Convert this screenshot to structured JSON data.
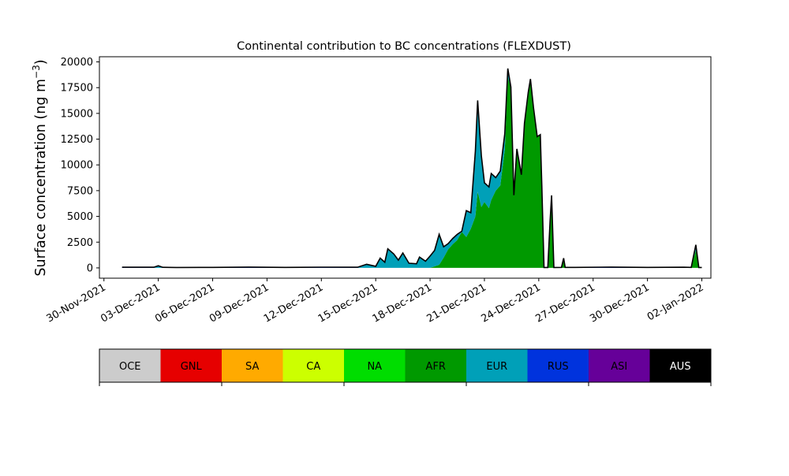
{
  "chart_data": {
    "type": "area",
    "title": "Continental contribution to BC concentrations (FLEXDUST)",
    "ylabel": "Surface concentration (ng m$^{-3}$)",
    "ylabel_parts": {
      "main": "Surface concentration (ng m",
      "sup": "−3",
      "close": ")"
    },
    "xlabel": "",
    "xlim": [
      "2021-11-29T18:00",
      "2022-01-02T12:00"
    ],
    "ylim": [
      -1000,
      20500
    ],
    "xticks": [
      {
        "value": "2021-11-30",
        "label": "30-Nov-2021"
      },
      {
        "value": "2021-12-03",
        "label": "03-Dec-2021"
      },
      {
        "value": "2021-12-06",
        "label": "06-Dec-2021"
      },
      {
        "value": "2021-12-09",
        "label": "09-Dec-2021"
      },
      {
        "value": "2021-12-12",
        "label": "12-Dec-2021"
      },
      {
        "value": "2021-12-15",
        "label": "15-Dec-2021"
      },
      {
        "value": "2021-12-18",
        "label": "18-Dec-2021"
      },
      {
        "value": "2021-12-21",
        "label": "21-Dec-2021"
      },
      {
        "value": "2021-12-24",
        "label": "24-Dec-2021"
      },
      {
        "value": "2021-12-27",
        "label": "27-Dec-2021"
      },
      {
        "value": "2021-12-30",
        "label": "30-Dec-2021"
      },
      {
        "value": "2022-01-02",
        "label": "02-Jan-2022"
      }
    ],
    "yticks": [
      {
        "value": 0,
        "label": "0"
      },
      {
        "value": 2500,
        "label": "2500"
      },
      {
        "value": 5000,
        "label": "5000"
      },
      {
        "value": 7500,
        "label": "7500"
      },
      {
        "value": 10000,
        "label": "10000"
      },
      {
        "value": 12500,
        "label": "12500"
      },
      {
        "value": 15000,
        "label": "15000"
      },
      {
        "value": 17500,
        "label": "17500"
      },
      {
        "value": 20000,
        "label": "20000"
      }
    ],
    "stacked": true,
    "total_line_color": "#000000",
    "series": [
      {
        "name": "AFR",
        "color": "#009900",
        "points": [
          [
            "2021-12-01",
            0
          ],
          [
            "2021-12-18",
            0
          ],
          [
            "2021-12-18T12:00",
            300
          ],
          [
            "2021-12-18T18:00",
            1000
          ],
          [
            "2021-12-19T00:00",
            1800
          ],
          [
            "2021-12-19T06:00",
            2300
          ],
          [
            "2021-12-19T12:00",
            2700
          ],
          [
            "2021-12-19T18:00",
            3500
          ],
          [
            "2021-12-20T00:00",
            3000
          ],
          [
            "2021-12-20T06:00",
            3800
          ],
          [
            "2021-12-20T12:00",
            5000
          ],
          [
            "2021-12-20T15:00",
            7400
          ],
          [
            "2021-12-20T20:00",
            5900
          ],
          [
            "2021-12-21T00:00",
            6400
          ],
          [
            "2021-12-21T06:00",
            5800
          ],
          [
            "2021-12-21T09:00",
            6600
          ],
          [
            "2021-12-21T15:00",
            7500
          ],
          [
            "2021-12-21T21:00",
            8000
          ],
          [
            "2021-12-22T03:00",
            11500
          ],
          [
            "2021-12-22T07:00",
            18500
          ],
          [
            "2021-12-22T11:00",
            17500
          ],
          [
            "2021-12-22T15:00",
            7000
          ],
          [
            "2021-12-22T19:00",
            11500
          ],
          [
            "2021-12-23T01:00",
            9000
          ],
          [
            "2021-12-23T05:00",
            14000
          ],
          [
            "2021-12-23T10:00",
            17000
          ],
          [
            "2021-12-23T13:00",
            18300
          ],
          [
            "2021-12-23T17:00",
            15500
          ],
          [
            "2021-12-23T22:00",
            12700
          ],
          [
            "2021-12-24T02:00",
            12900
          ],
          [
            "2021-12-24T04:00",
            8000
          ],
          [
            "2021-12-24T07:00",
            0
          ],
          [
            "2021-12-24T12:00",
            0
          ],
          [
            "2021-12-24T15:00",
            4500
          ],
          [
            "2021-12-24T17:00",
            7000
          ],
          [
            "2021-12-24T20:00",
            0
          ],
          [
            "2021-12-25T06:00",
            0
          ],
          [
            "2021-12-25T09:00",
            900
          ],
          [
            "2021-12-25T11:00",
            0
          ],
          [
            "2022-01-01T10:00",
            0
          ],
          [
            "2022-01-01T16:00",
            1700
          ],
          [
            "2022-01-01T20:00",
            0
          ],
          [
            "2022-01-02",
            0
          ]
        ]
      },
      {
        "name": "EUR",
        "color": "#00a0b8",
        "points": [
          [
            "2021-12-01",
            0
          ],
          [
            "2021-12-02T18:00",
            0
          ],
          [
            "2021-12-03",
            150
          ],
          [
            "2021-12-03T06:00",
            0
          ],
          [
            "2021-12-14",
            0
          ],
          [
            "2021-12-14T12:00",
            300
          ],
          [
            "2021-12-15",
            100
          ],
          [
            "2021-12-15T06:00",
            900
          ],
          [
            "2021-12-15T12:00",
            500
          ],
          [
            "2021-12-15T16:00",
            1800
          ],
          [
            "2021-12-16",
            1300
          ],
          [
            "2021-12-16T06:00",
            700
          ],
          [
            "2021-12-16T12:00",
            1400
          ],
          [
            "2021-12-16T20:00",
            400
          ],
          [
            "2021-12-17T06:00",
            350
          ],
          [
            "2021-12-17T10:00",
            1000
          ],
          [
            "2021-12-17T18:00",
            600
          ],
          [
            "2021-12-18T00:00",
            1100
          ],
          [
            "2021-12-18T06:00",
            1500
          ],
          [
            "2021-12-18T12:00",
            2900
          ],
          [
            "2021-12-18T18:00",
            1000
          ],
          [
            "2021-12-19T00:00",
            500
          ],
          [
            "2021-12-19T06:00",
            500
          ],
          [
            "2021-12-19T12:00",
            500
          ],
          [
            "2021-12-19T18:00",
            0
          ],
          [
            "2021-12-20T00:00",
            2500
          ],
          [
            "2021-12-20T06:00",
            1500
          ],
          [
            "2021-12-20T12:00",
            6300
          ],
          [
            "2021-12-20T15:00",
            8800
          ],
          [
            "2021-12-21T00:00",
            1800
          ],
          [
            "2021-12-21T06:00",
            2000
          ],
          [
            "2021-12-21T09:00",
            2500
          ],
          [
            "2021-12-21T15:00",
            1200
          ],
          [
            "2021-12-22T03:00",
            1500
          ],
          [
            "2021-12-22T07:00",
            800
          ],
          [
            "2021-12-22T11:00",
            0
          ],
          [
            "2021-12-24",
            0
          ],
          [
            "2021-12-24T12:00",
            0
          ],
          [
            "2021-12-24T15:00",
            0
          ],
          [
            "2022-01-01T10:00",
            0
          ],
          [
            "2022-01-01T16:00",
            500
          ],
          [
            "2022-01-01T20:00",
            0
          ],
          [
            "2022-01-02",
            0
          ]
        ]
      },
      {
        "name": "RUS",
        "color": "#0033dd",
        "points": [
          [
            "2021-12-01",
            60
          ],
          [
            "2021-12-03",
            60
          ],
          [
            "2021-12-04",
            40
          ],
          [
            "2021-12-06",
            50
          ],
          [
            "2021-12-08",
            80
          ],
          [
            "2021-12-10",
            50
          ],
          [
            "2021-12-12",
            70
          ],
          [
            "2021-12-14",
            60
          ],
          [
            "2021-12-16",
            50
          ],
          [
            "2021-12-18",
            50
          ],
          [
            "2021-12-20",
            60
          ],
          [
            "2021-12-22",
            60
          ],
          [
            "2021-12-24",
            40
          ],
          [
            "2021-12-26",
            50
          ],
          [
            "2021-12-28",
            80
          ],
          [
            "2021-12-30",
            50
          ],
          [
            "2022-01-01",
            60
          ],
          [
            "2022-01-02",
            40
          ]
        ]
      }
    ],
    "legend": {
      "placement": "bottom",
      "entries": [
        {
          "name": "OCE",
          "color": "#cccccc"
        },
        {
          "name": "GNL",
          "color": "#e60000"
        },
        {
          "name": "SA",
          "color": "#ffaa00"
        },
        {
          "name": "CA",
          "color": "#ccff00"
        },
        {
          "name": "NA",
          "color": "#00dd00"
        },
        {
          "name": "AFR",
          "color": "#009900"
        },
        {
          "name": "EUR",
          "color": "#00a0b8"
        },
        {
          "name": "RUS",
          "color": "#0033dd"
        },
        {
          "name": "ASI",
          "color": "#660099"
        },
        {
          "name": "AUS",
          "color": "#000000"
        }
      ]
    }
  }
}
